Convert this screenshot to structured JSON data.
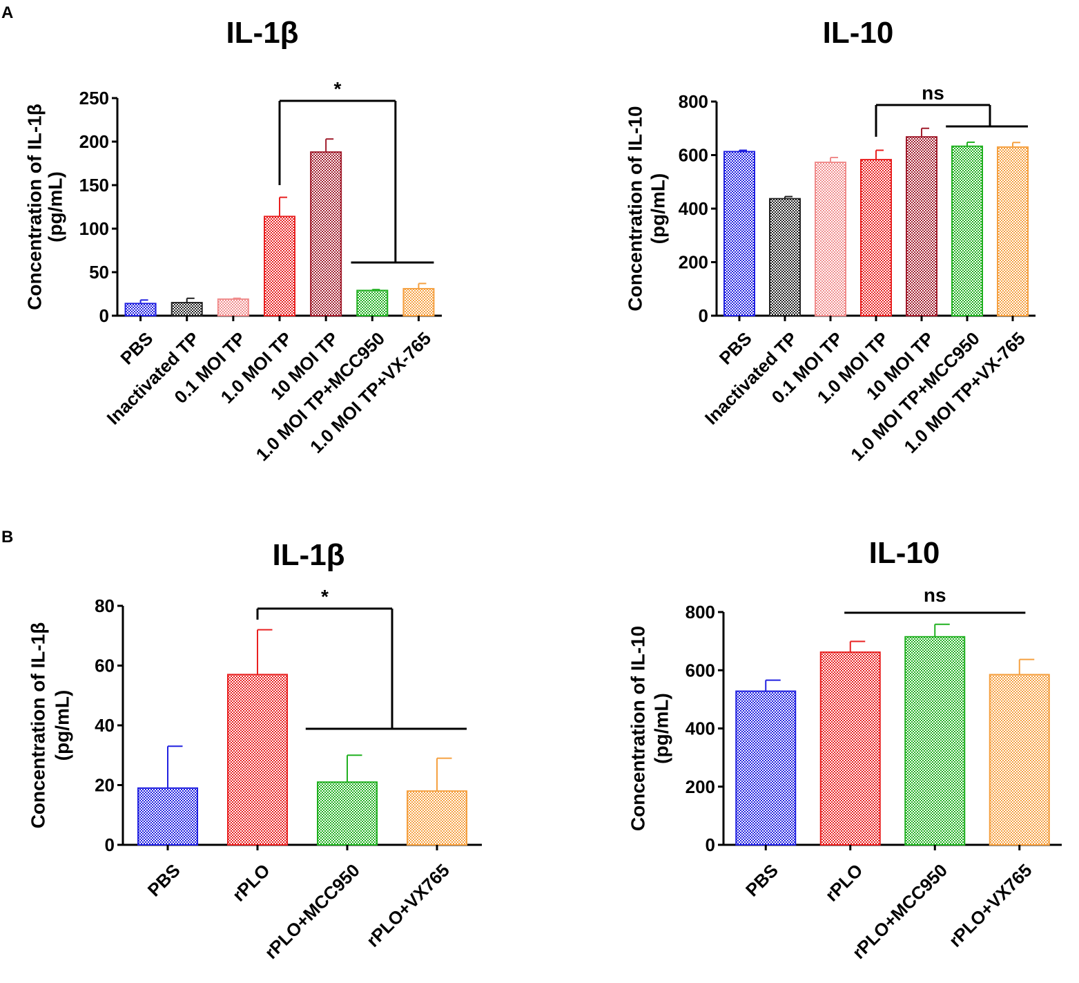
{
  "panels": [
    {
      "letter": "A"
    },
    {
      "letter": "B"
    }
  ],
  "colors": {
    "PBS": "#2020e0",
    "Inactivated TP": "#202020",
    "0.1 MOI TP": "#f08c8c",
    "1.0 MOI TP": "#e82020",
    "10 MOI TP": "#a01c2c",
    "MCC950": "#20b020",
    "VX": "#f5a040"
  },
  "chart_data": [
    {
      "type": "bar",
      "panel": "A",
      "title": "IL-1β",
      "ylabel": "Concentration of IL-1β (pg/mL)",
      "ylabel_lines": [
        "Concentration of IL-1β",
        "(pg/mL)"
      ],
      "xlabel": "",
      "ylim": [
        0,
        250
      ],
      "yticks": [
        0,
        50,
        100,
        150,
        200,
        250
      ],
      "categories": [
        "PBS",
        "Inactivated TP",
        "0.1 MOI TP",
        "1.0 MOI TP",
        "10 MOI TP",
        "1.0 MOI TP+MCC950",
        "1.0 MOI TP+VX-765"
      ],
      "values": [
        14,
        15,
        19,
        114,
        188,
        29,
        31
      ],
      "errors": [
        4,
        5,
        1,
        22,
        15,
        1,
        6
      ],
      "colors": [
        "#2020e0",
        "#202020",
        "#f08c8c",
        "#e82020",
        "#a01c2c",
        "#20b020",
        "#f5a040"
      ],
      "significance": {
        "label": "*",
        "from": 3,
        "to": [
          5,
          6
        ],
        "style": "down"
      }
    },
    {
      "type": "bar",
      "panel": "A",
      "title": "IL-10",
      "ylabel": "Concentration of IL-10 (pg/mL)",
      "ylabel_lines": [
        "Concentration of IL-10",
        "(pg/mL)"
      ],
      "xlabel": "",
      "ylim": [
        0,
        800
      ],
      "yticks": [
        0,
        200,
        400,
        600,
        800
      ],
      "categories": [
        "PBS",
        "Inactivated TP",
        "0.1 MOI TP",
        "1.0 MOI TP",
        "10 MOI TP",
        "1.0 MOI TP+MCC950",
        "1.0 MOI TP+VX-765"
      ],
      "values": [
        613,
        437,
        573,
        583,
        668,
        633,
        630
      ],
      "errors": [
        5,
        8,
        18,
        35,
        32,
        15,
        17
      ],
      "colors": [
        "#2020e0",
        "#202020",
        "#f08c8c",
        "#e82020",
        "#a01c2c",
        "#20b020",
        "#f5a040"
      ],
      "significance": {
        "label": "ns",
        "from": 3,
        "to": [
          5,
          6
        ],
        "style": "up"
      }
    },
    {
      "type": "bar",
      "panel": "B",
      "title": "IL-1β",
      "ylabel": "Concentration of IL-1β (pg/mL)",
      "ylabel_lines": [
        "Concentration of IL-1β",
        "(pg/mL)"
      ],
      "xlabel": "",
      "ylim": [
        0,
        80
      ],
      "yticks": [
        0,
        20,
        40,
        60,
        80
      ],
      "categories": [
        "PBS",
        "rPLO",
        "rPLO+MCC950",
        "rPLO+VX765"
      ],
      "values": [
        19,
        57,
        21,
        18
      ],
      "errors": [
        14,
        15,
        9,
        11
      ],
      "colors": [
        "#2020e0",
        "#e82020",
        "#20b020",
        "#f5a040"
      ],
      "significance": {
        "label": "*",
        "from": 1,
        "to": [
          2,
          3
        ],
        "style": "down"
      }
    },
    {
      "type": "bar",
      "panel": "B",
      "title": "IL-10",
      "ylabel": "Concentration of IL-10 (pg/mL)",
      "ylabel_lines": [
        "Concentration of IL-10",
        "(pg/mL)"
      ],
      "xlabel": "",
      "ylim": [
        0,
        800
      ],
      "yticks": [
        0,
        200,
        400,
        600,
        800
      ],
      "categories": [
        "PBS",
        "rPLO",
        "rPLO+MCC950",
        "rPLO+VX765"
      ],
      "values": [
        528,
        662,
        715,
        585
      ],
      "errors": [
        38,
        37,
        43,
        52
      ],
      "colors": [
        "#2020e0",
        "#e82020",
        "#20b020",
        "#f5a040"
      ],
      "significance": {
        "label": "ns",
        "from": 1,
        "to": [
          3
        ],
        "style": "flat"
      }
    }
  ]
}
